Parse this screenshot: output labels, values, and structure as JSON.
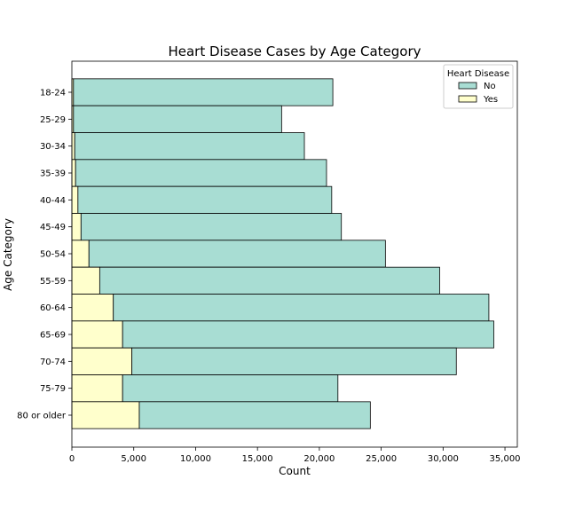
{
  "chart_data": {
    "type": "bar",
    "orientation": "horizontal",
    "stacked": true,
    "title": "Heart Disease Cases by Age Category",
    "xlabel": "Count",
    "ylabel": "Age Category",
    "categories": [
      "18-24",
      "25-29",
      "30-34",
      "35-39",
      "40-44",
      "45-49",
      "50-54",
      "55-59",
      "60-64",
      "65-69",
      "70-74",
      "75-79",
      "80 or older"
    ],
    "xlim": [
      0,
      36000
    ],
    "xticks": [
      0,
      5000,
      10000,
      15000,
      20000,
      25000,
      30000,
      35000
    ],
    "xtick_labels": [
      "0",
      "5,000",
      "10,000",
      "15,000",
      "20,000",
      "25,000",
      "30,000",
      "35,000"
    ],
    "grid": false,
    "legend": {
      "title": "Heart Disease",
      "position": "top-right"
    },
    "series": [
      {
        "name": "Yes",
        "color": "#ffffcc",
        "values": [
          130,
          130,
          230,
          300,
          490,
          740,
          1380,
          2250,
          3350,
          4100,
          4850,
          4100,
          5450
        ]
      },
      {
        "name": "No",
        "color": "#a8ddd3",
        "values": [
          20960,
          16820,
          18560,
          20280,
          20510,
          21040,
          23960,
          27470,
          30350,
          30000,
          26220,
          17400,
          18670
        ]
      }
    ]
  }
}
